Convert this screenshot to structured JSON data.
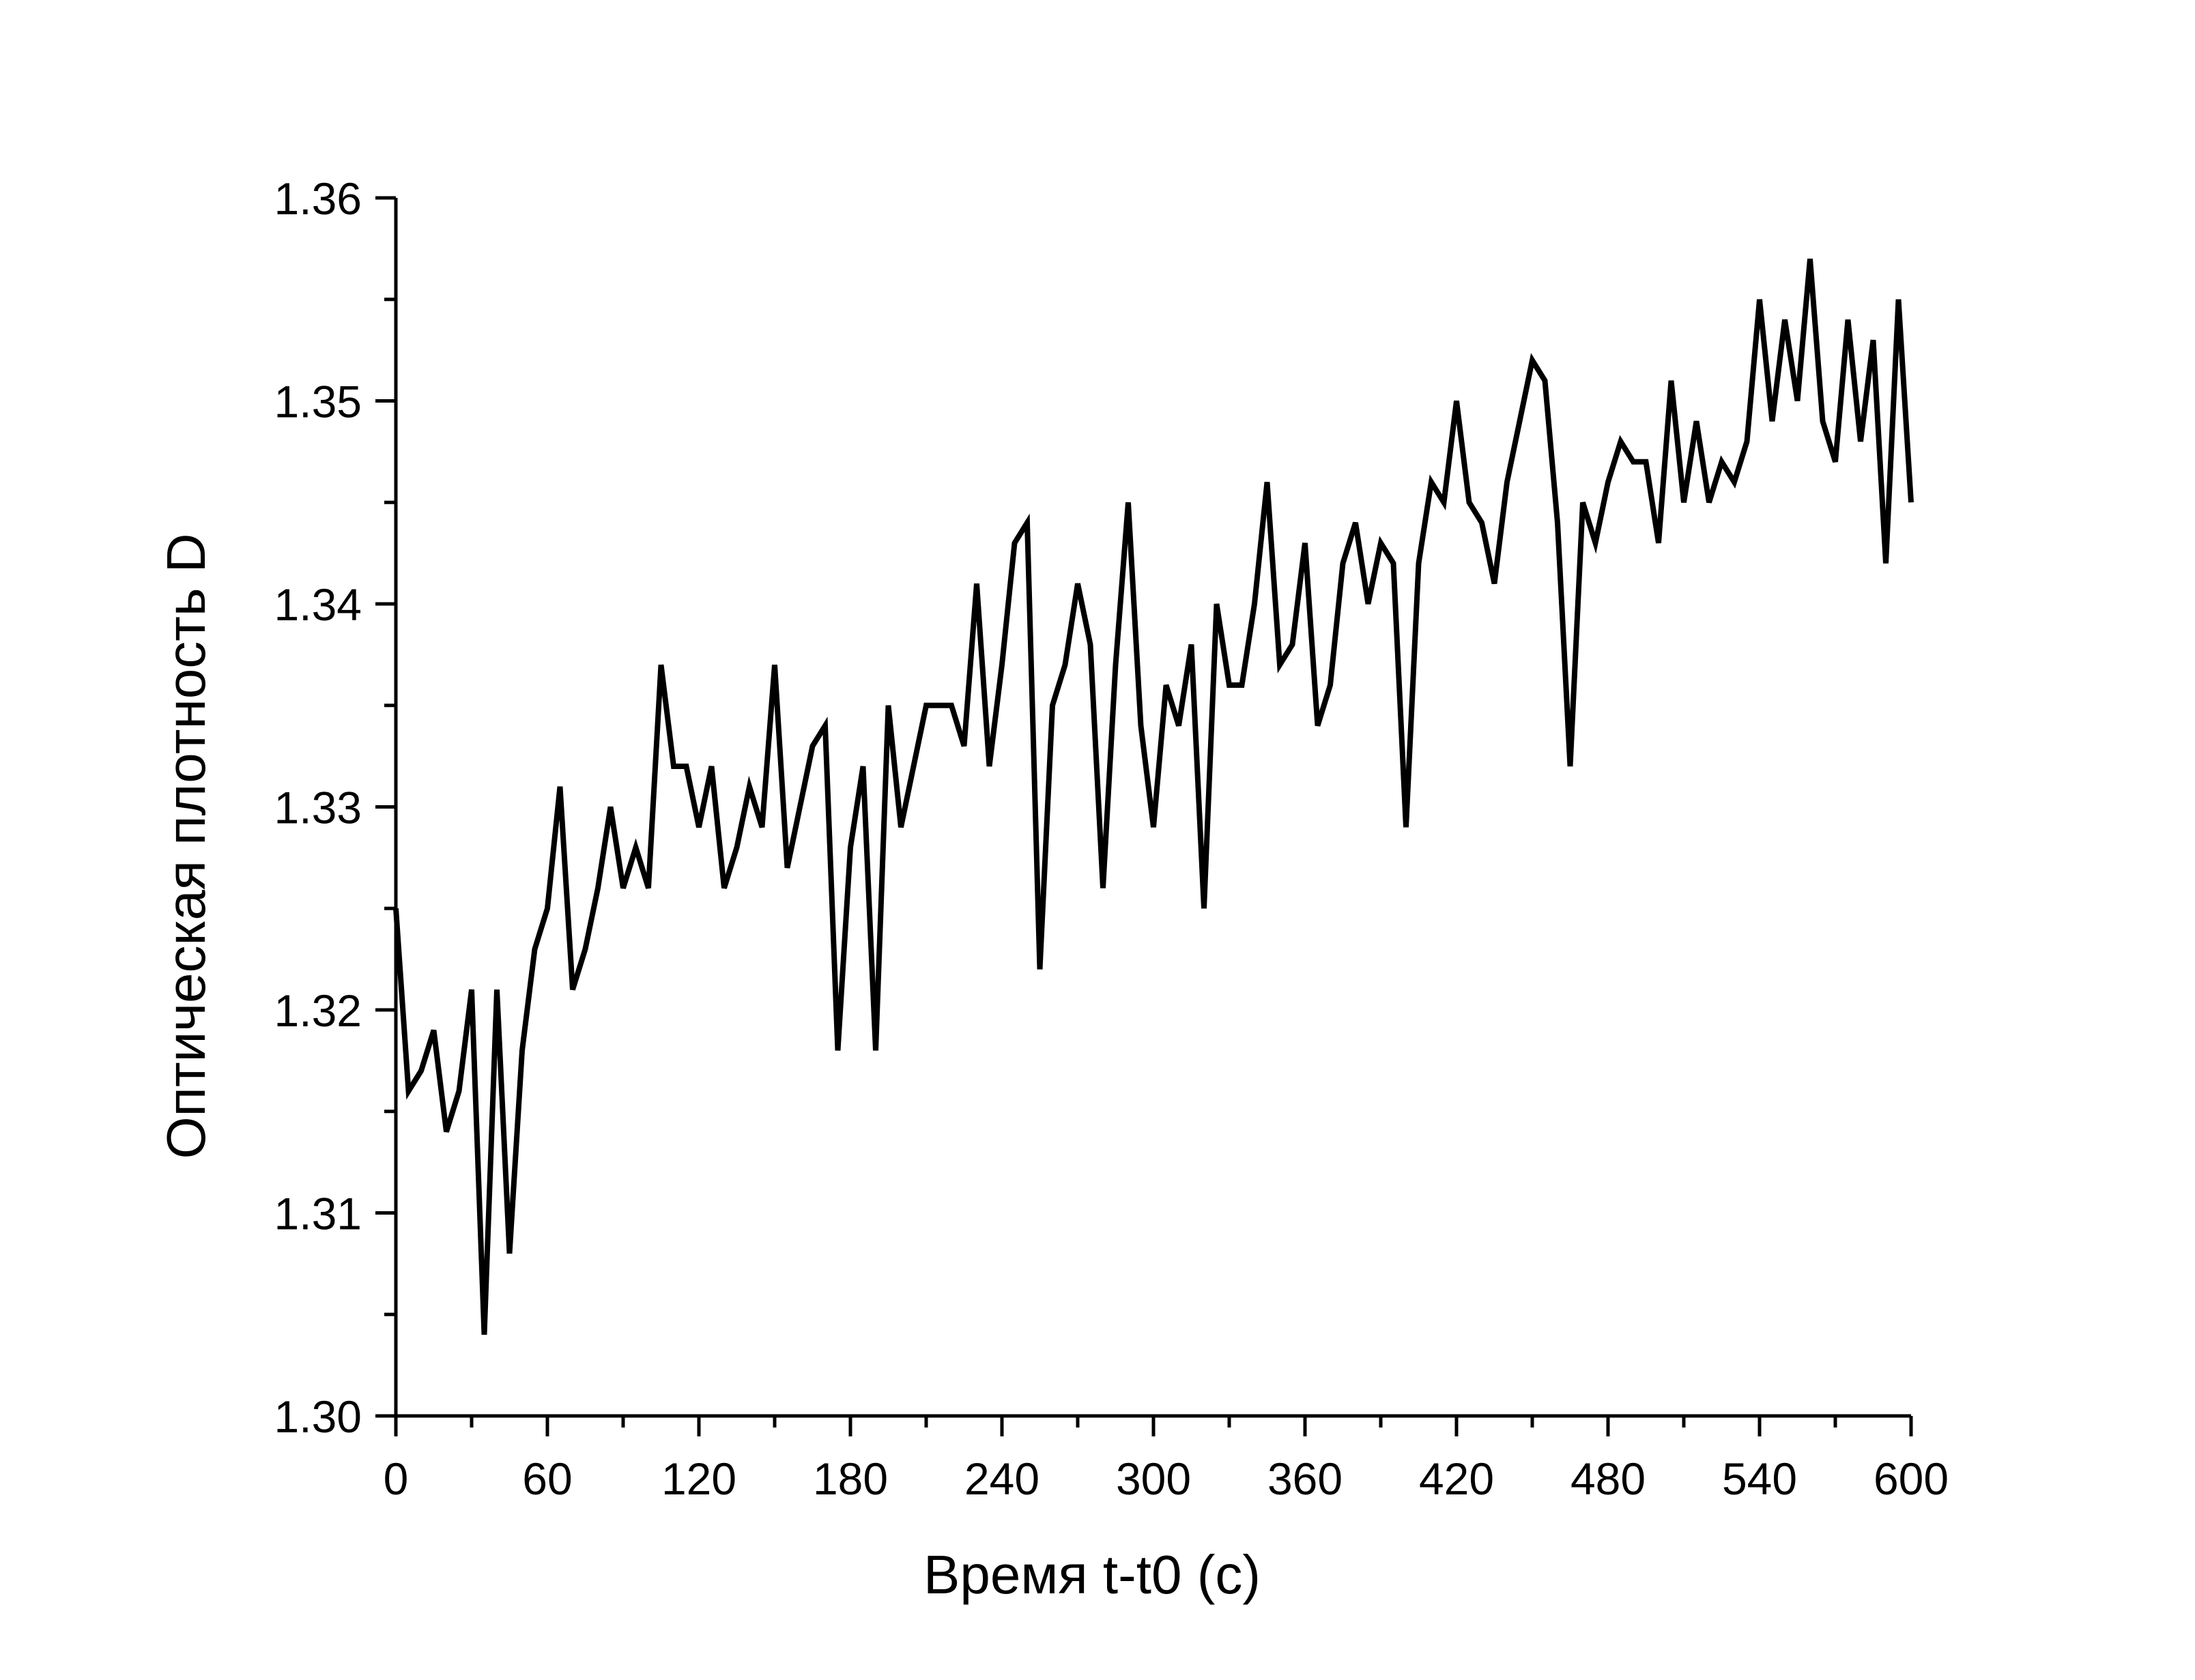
{
  "chart_data": {
    "type": "line",
    "title": "",
    "xlabel": "Время t-t0 (с)",
    "ylabel": "Оптическая плотность D",
    "xlim": [
      0,
      600
    ],
    "ylim": [
      1.3,
      1.36
    ],
    "x_ticks": [
      0,
      60,
      120,
      180,
      240,
      300,
      360,
      420,
      480,
      540,
      600
    ],
    "x_tick_labels": [
      "0",
      "60",
      "120",
      "180",
      "240",
      "300",
      "360",
      "420",
      "480",
      "540",
      "600"
    ],
    "y_ticks": [
      1.3,
      1.31,
      1.32,
      1.33,
      1.34,
      1.35,
      1.36
    ],
    "y_tick_labels": [
      "1.30",
      "1.31",
      "1.32",
      "1.33",
      "1.34",
      "1.35",
      "1.36"
    ],
    "grid": false,
    "line_color": "#000000",
    "series": [
      {
        "x": [
          0,
          5,
          10,
          15,
          20,
          25,
          30,
          35,
          40,
          45,
          50,
          55,
          60,
          65,
          70,
          75,
          80,
          85,
          90,
          95,
          100,
          105,
          110,
          115,
          120,
          125,
          130,
          135,
          140,
          145,
          150,
          155,
          160,
          165,
          170,
          175,
          180,
          185,
          190,
          195,
          200,
          205,
          210,
          215,
          220,
          225,
          230,
          235,
          240,
          245,
          250,
          255,
          260,
          265,
          270,
          275,
          280,
          285,
          290,
          295,
          300,
          305,
          310,
          315,
          320,
          325,
          330,
          335,
          340,
          345,
          350,
          355,
          360,
          365,
          370,
          375,
          380,
          385,
          390,
          395,
          400,
          405,
          410,
          415,
          420,
          425,
          430,
          435,
          440,
          445,
          450,
          455,
          460,
          465,
          470,
          475,
          480,
          485,
          490,
          495,
          500,
          505,
          510,
          515,
          520,
          525,
          530,
          535,
          540,
          545,
          550,
          555,
          560,
          565,
          570,
          575,
          580,
          585,
          590,
          595,
          600
        ],
        "y": [
          1.325,
          1.316,
          1.317,
          1.319,
          1.314,
          1.316,
          1.321,
          1.304,
          1.321,
          1.308,
          1.318,
          1.323,
          1.325,
          1.331,
          1.321,
          1.323,
          1.326,
          1.33,
          1.326,
          1.328,
          1.326,
          1.337,
          1.332,
          1.332,
          1.329,
          1.332,
          1.326,
          1.328,
          1.331,
          1.329,
          1.337,
          1.327,
          1.33,
          1.333,
          1.334,
          1.318,
          1.328,
          1.332,
          1.318,
          1.335,
          1.329,
          1.332,
          1.335,
          1.335,
          1.335,
          1.333,
          1.341,
          1.332,
          1.337,
          1.343,
          1.344,
          1.322,
          1.335,
          1.337,
          1.341,
          1.338,
          1.326,
          1.337,
          1.345,
          1.334,
          1.329,
          1.336,
          1.334,
          1.338,
          1.325,
          1.34,
          1.336,
          1.336,
          1.34,
          1.346,
          1.337,
          1.338,
          1.343,
          1.334,
          1.336,
          1.342,
          1.344,
          1.34,
          1.343,
          1.342,
          1.329,
          1.342,
          1.346,
          1.345,
          1.35,
          1.345,
          1.344,
          1.341,
          1.346,
          1.349,
          1.352,
          1.351,
          1.344,
          1.332,
          1.345,
          1.343,
          1.346,
          1.348,
          1.347,
          1.347,
          1.343,
          1.351,
          1.345,
          1.349,
          1.345,
          1.347,
          1.346,
          1.348,
          1.355,
          1.349,
          1.354,
          1.35,
          1.357,
          1.349,
          1.347,
          1.354,
          1.348,
          1.353,
          1.342,
          1.355,
          1.345
        ]
      }
    ]
  }
}
